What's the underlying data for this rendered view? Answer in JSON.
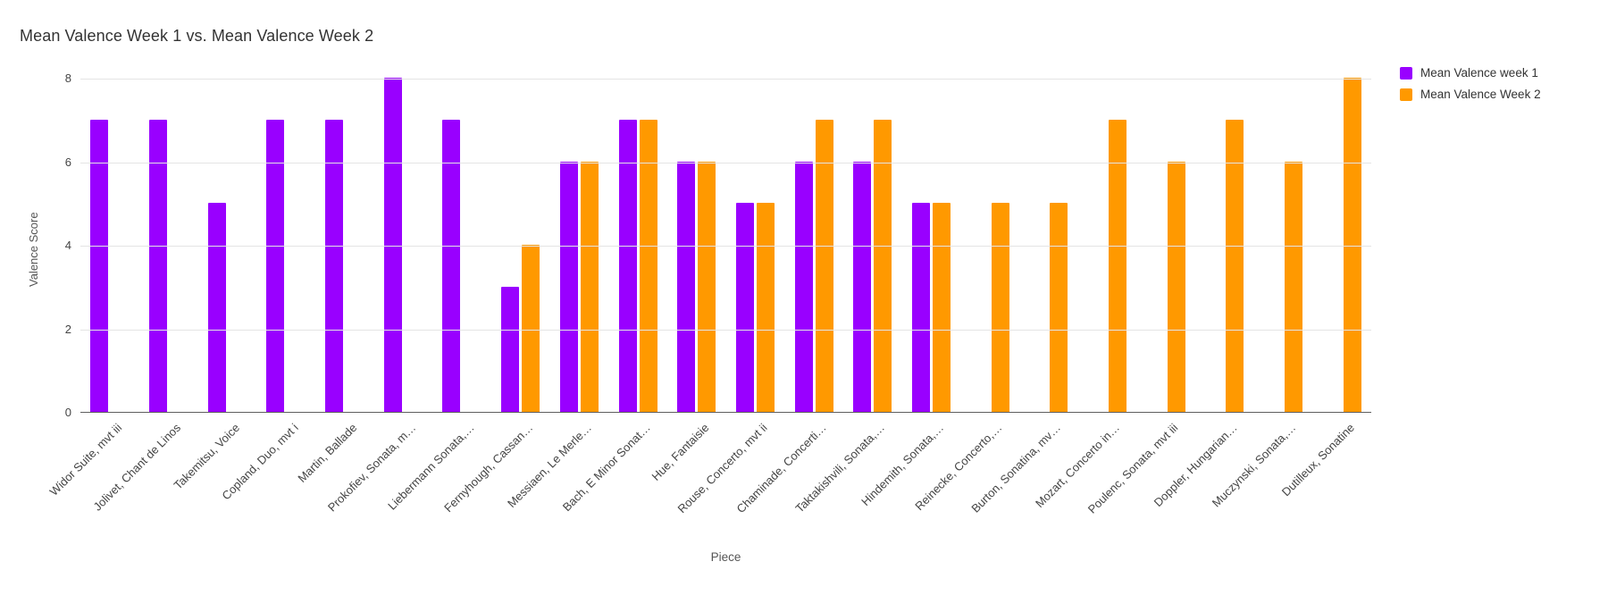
{
  "chart_title": "Mean Valence Week 1 vs. Mean Valence Week 2",
  "chart_data": {
    "type": "bar",
    "title": "Mean Valence Week 1 vs. Mean Valence Week 2",
    "xlabel": "Piece",
    "ylabel": "Valence Score",
    "ylim": [
      0,
      8
    ],
    "yticks": [
      0,
      2,
      4,
      6,
      8
    ],
    "grid": true,
    "legend_position": "right",
    "background": "#ffffff",
    "categories": [
      "Widor Suite, mvt iii",
      "Jolivet, Chant de Linos",
      "Takemitsu, Voice",
      "Copland, Duo, mvt i",
      "Martin, Ballade",
      "Prokofiev, Sonata, m…",
      "Liebermann Sonata,…",
      "Fernyhough, Cassan…",
      "Messiaen, Le Merle…",
      "Bach, E Minor Sonat…",
      "Hue, Fantaisie",
      "Rouse, Concerto, mvt ii",
      "Chaminade, Concerti…",
      "Taktakishvili, Sonata,…",
      "Hindemith, Sonata,…",
      "Reinecke, Concerto,…",
      "Burton, Sonatina, mv…",
      "Mozart, Concerto in…",
      "Poulenc, Sonata, mvt iii",
      "Doppler, Hungarian…",
      "Muczynski, Sonata,…",
      "Dutilleux, Sonatine"
    ],
    "series": [
      {
        "name": "Mean Valence week 1",
        "color": "#9900ff",
        "values": [
          7,
          7,
          5,
          7,
          7,
          8,
          7,
          3,
          6,
          7,
          6,
          5,
          6,
          6,
          5,
          null,
          null,
          null,
          null,
          null,
          null,
          null
        ]
      },
      {
        "name": "Mean Valence Week 2",
        "color": "#ff9900",
        "values": [
          null,
          null,
          null,
          null,
          null,
          null,
          null,
          4,
          6,
          7,
          6,
          5,
          7,
          7,
          5,
          5,
          5,
          7,
          6,
          7,
          6,
          8
        ]
      }
    ]
  }
}
